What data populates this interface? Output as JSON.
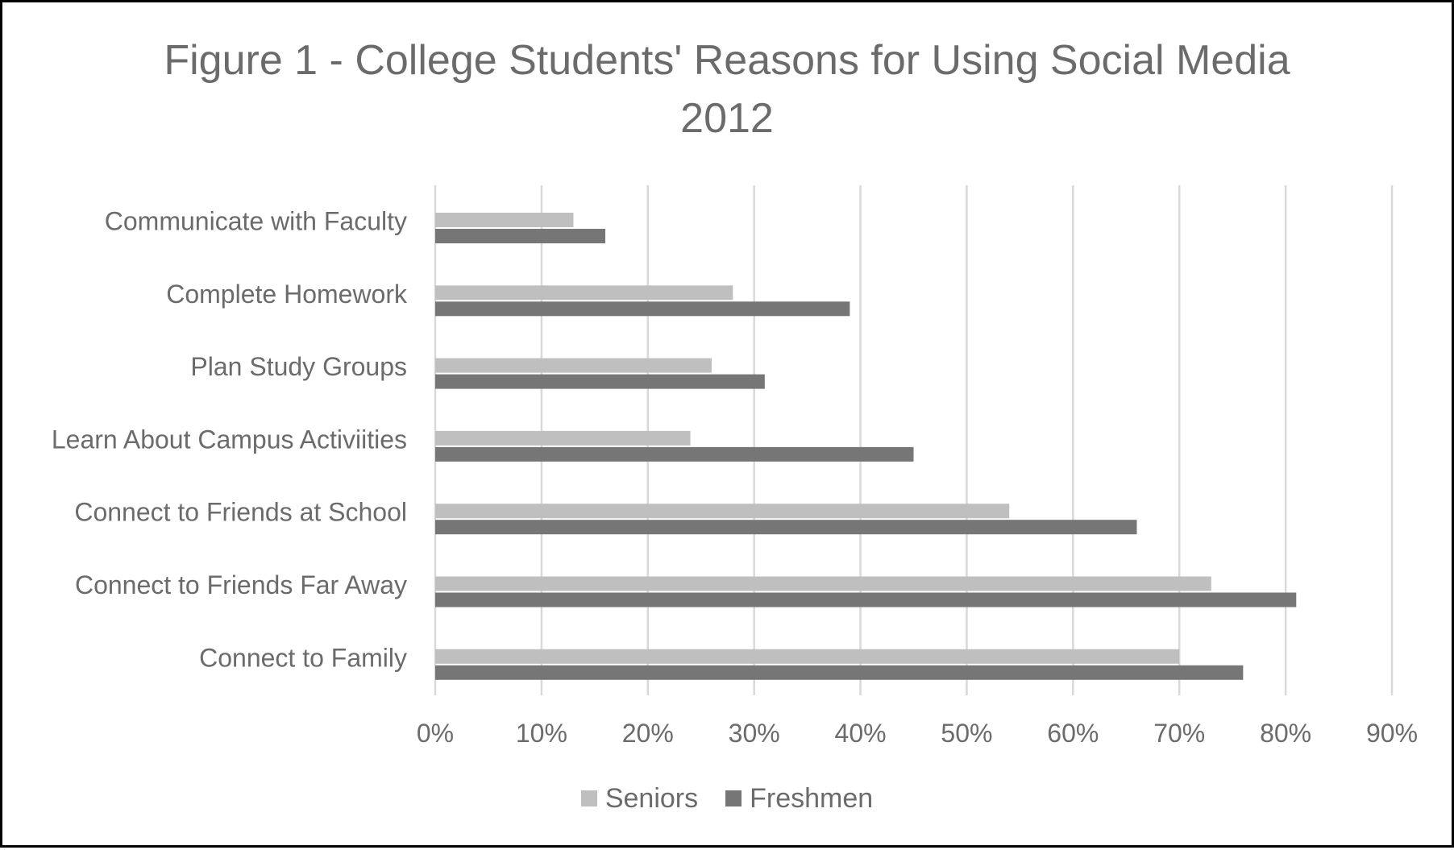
{
  "chart_data": {
    "type": "bar",
    "orientation": "horizontal",
    "title_lines": [
      "Figure 1 - College Students' Reasons for Using Social Media",
      "2012"
    ],
    "categories": [
      "Communicate with Faculty",
      "Complete Homework",
      "Plan Study Groups",
      "Learn About Campus Activiities",
      "Connect to Friends at School",
      "Connect to Friends Far Away",
      "Connect to Family"
    ],
    "series": [
      {
        "name": "Seniors",
        "color": "#bfbfbf",
        "values": [
          0.13,
          0.28,
          0.26,
          0.24,
          0.54,
          0.73,
          0.7
        ]
      },
      {
        "name": "Freshmen",
        "color": "#767676",
        "values": [
          0.16,
          0.39,
          0.31,
          0.45,
          0.66,
          0.81,
          0.76
        ]
      }
    ],
    "x_ticks": [
      "0%",
      "10%",
      "20%",
      "30%",
      "40%",
      "50%",
      "60%",
      "70%",
      "80%",
      "90%"
    ],
    "xlim": [
      0,
      0.9
    ],
    "grid": true,
    "legend_position": "bottom"
  },
  "legend": {
    "seniors_label": "Seniors",
    "freshmen_label": "Freshmen"
  }
}
